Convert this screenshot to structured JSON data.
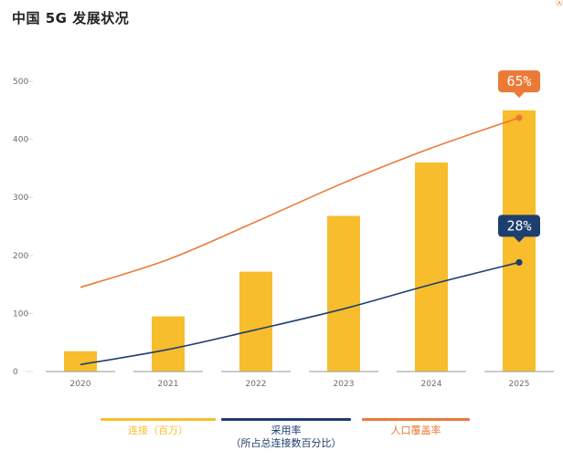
{
  "title": "中国 5G 发展状况",
  "colors": {
    "bar": "#f7bd2d",
    "adoption": "#1d3f6e",
    "coverage": "#ec7a37",
    "axis_text": "#6b6b6b",
    "tick_line": "#dcdcdc",
    "baseline": "#9a9a9a"
  },
  "chart_data": {
    "type": "bar",
    "title": "中国 5G 发展状况",
    "categories": [
      "2020",
      "2021",
      "2022",
      "2023",
      "2024",
      "2025"
    ],
    "ylim": [
      0,
      500
    ],
    "yticks": [
      0,
      100,
      200,
      300,
      400,
      500
    ],
    "grid": false,
    "legend_position": "bottom",
    "series": [
      {
        "name": "连接（百万）",
        "type": "bar",
        "values": [
          35,
          95,
          172,
          268,
          360,
          450
        ]
      },
      {
        "name": "采用率（所占总连接数百分比）",
        "type": "line",
        "values": [
          12,
          38,
          72,
          108,
          150,
          188
        ],
        "end_label": "28%"
      },
      {
        "name": "人口覆盖率",
        "type": "line",
        "values": [
          145,
          193,
          258,
          325,
          385,
          437
        ],
        "end_label": "65%"
      }
    ]
  },
  "legend": [
    {
      "label": "连接（百万）",
      "label2": "",
      "color_key": "bar"
    },
    {
      "label": "采用率",
      "label2": "（所占总连接数百分比）",
      "color_key": "adoption"
    },
    {
      "label": "人口覆盖率",
      "label2": "",
      "color_key": "coverage"
    }
  ],
  "corner_glyph": "Ⓐ"
}
